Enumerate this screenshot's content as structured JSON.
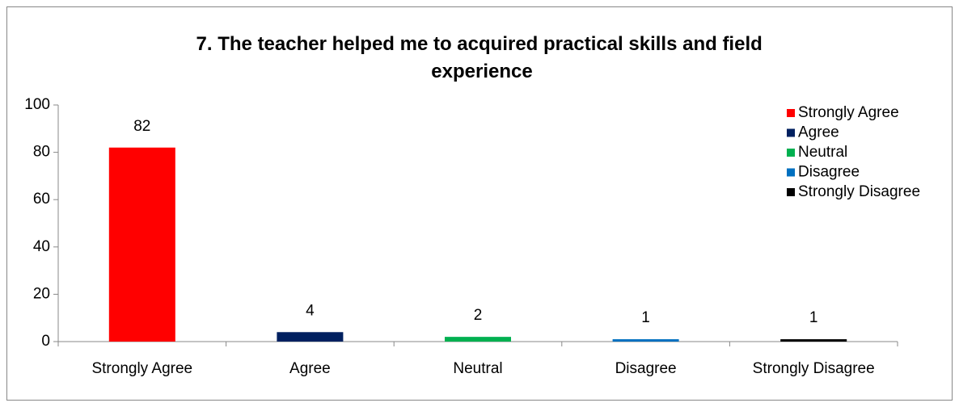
{
  "chart_data": {
    "type": "bar",
    "title": "7. The teacher helped me to acquired practical skills and field experience",
    "categories": [
      "Strongly Agree",
      "Agree",
      "Neutral",
      "Disagree",
      "Strongly Disagree"
    ],
    "values": [
      82,
      4,
      2,
      1,
      1
    ],
    "colors": [
      "#ff0000",
      "#002060",
      "#00b050",
      "#0070c0",
      "#000000"
    ],
    "ylim": [
      0,
      100
    ],
    "yticks": [
      0,
      20,
      40,
      60,
      80,
      100
    ],
    "grid": false,
    "legend": "top-right"
  }
}
